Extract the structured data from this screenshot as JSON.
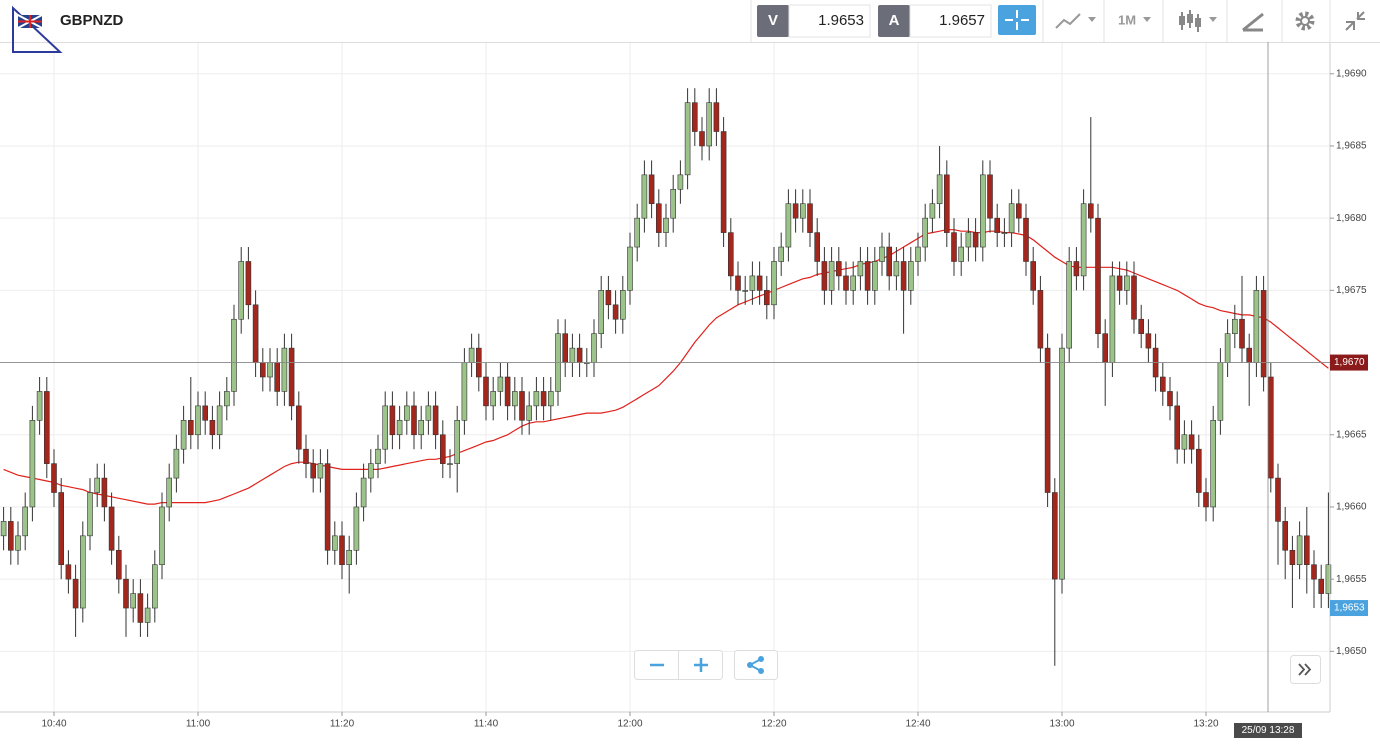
{
  "toolbar": {
    "symbol": "GBPNZD",
    "bid_label": "V",
    "bid": "1.9653",
    "ask_label": "A",
    "ask": "1.9657",
    "timeframe": "1M"
  },
  "chart_data": {
    "type": "candlestick",
    "categories": [
      null,
      null,
      null,
      null,
      null,
      null,
      null,
      "10:40",
      null,
      null,
      null,
      null,
      null,
      null,
      null,
      null,
      null,
      null,
      null,
      null,
      null,
      null,
      null,
      null,
      null,
      null,
      null,
      "11:00",
      null,
      null,
      null,
      null,
      null,
      null,
      null,
      null,
      null,
      null,
      null,
      null,
      null,
      null,
      null,
      null,
      null,
      null,
      null,
      "11:20",
      null,
      null,
      null,
      null,
      null,
      null,
      null,
      null,
      null,
      null,
      null,
      null,
      null,
      null,
      null,
      null,
      null,
      null,
      null,
      "11:40",
      null,
      null,
      null,
      null,
      null,
      null,
      null,
      null,
      null,
      null,
      null,
      null,
      null,
      null,
      null,
      null,
      null,
      null,
      null,
      "12:00",
      null,
      null,
      null,
      null,
      null,
      null,
      null,
      null,
      null,
      null,
      null,
      null,
      null,
      null,
      null,
      null,
      null,
      null,
      null,
      "12:20",
      null,
      null,
      null,
      null,
      null,
      null,
      null,
      null,
      null,
      null,
      null,
      null,
      null,
      null,
      null,
      null,
      null,
      null,
      null,
      "12:40",
      null,
      null,
      null,
      null,
      null,
      null,
      null,
      null,
      null,
      null,
      null,
      null,
      null,
      null,
      null,
      null,
      null,
      null,
      null,
      "13:00",
      null,
      null,
      null,
      null,
      null,
      null,
      null,
      null,
      null,
      null,
      null,
      null,
      null,
      null,
      null,
      null,
      null,
      null,
      null,
      "13:20",
      null,
      null,
      null,
      null,
      null,
      null,
      null,
      null,
      null,
      null,
      null,
      null,
      null,
      null,
      null,
      null,
      null
    ],
    "open": [
      1.9658,
      1.9659,
      1.9657,
      1.9658,
      1.966,
      1.9666,
      1.9668,
      1.9663,
      1.9661,
      1.9656,
      1.9655,
      1.9653,
      1.9658,
      1.9661,
      1.9662,
      1.966,
      1.9657,
      1.9655,
      1.9653,
      1.9654,
      1.9652,
      1.9653,
      1.9656,
      1.966,
      1.9662,
      1.9664,
      1.9666,
      1.9665,
      1.9667,
      1.9666,
      1.9665,
      1.9667,
      1.9668,
      1.9673,
      1.9677,
      1.9674,
      1.967,
      1.9669,
      1.967,
      1.9668,
      1.9671,
      1.9667,
      1.9664,
      1.9663,
      1.9662,
      1.9663,
      1.9657,
      1.9658,
      1.9656,
      1.9657,
      1.966,
      1.9662,
      1.9663,
      1.9664,
      1.9667,
      1.9665,
      1.9666,
      1.9667,
      1.9665,
      1.9666,
      1.9667,
      1.9665,
      1.9663,
      1.9663,
      1.9666,
      1.967,
      1.9671,
      1.9669,
      1.9667,
      1.9668,
      1.9669,
      1.9667,
      1.9668,
      1.9666,
      1.9667,
      1.9668,
      1.9667,
      1.9668,
      1.9672,
      1.967,
      1.9671,
      1.967,
      1.967,
      1.9672,
      1.9675,
      1.9674,
      1.9673,
      1.9675,
      1.9678,
      1.968,
      1.9683,
      1.9681,
      1.9679,
      1.968,
      1.9682,
      1.9683,
      1.9688,
      1.9686,
      1.9685,
      1.9688,
      1.9686,
      1.9679,
      1.9676,
      1.9675,
      1.9675,
      1.9676,
      1.9675,
      1.9674,
      1.9677,
      1.9678,
      1.9681,
      1.968,
      1.9681,
      1.9679,
      1.9677,
      1.9675,
      1.9677,
      1.9676,
      1.9675,
      1.9676,
      1.9677,
      1.9675,
      1.9677,
      1.9678,
      1.9676,
      1.9677,
      1.9675,
      1.9677,
      1.9678,
      1.968,
      1.9681,
      1.9683,
      1.9679,
      1.9677,
      1.9678,
      1.9679,
      1.9678,
      1.9683,
      1.968,
      1.9679,
      1.9679,
      1.9681,
      1.968,
      1.9677,
      1.9675,
      1.9671,
      1.9661,
      1.9655,
      1.9671,
      1.9677,
      1.9676,
      1.9681,
      1.968,
      1.9672,
      1.967,
      1.9676,
      1.9675,
      1.9676,
      1.9673,
      1.9672,
      1.9671,
      1.9669,
      1.9668,
      1.9667,
      1.9664,
      1.9665,
      1.9664,
      1.9661,
      1.966,
      1.9666,
      1.967,
      1.9672,
      1.9673,
      1.9671,
      1.967,
      1.9675,
      1.9669,
      1.9662,
      1.9659,
      1.9657,
      1.9656,
      1.9658,
      1.9656,
      1.9655,
      1.9654
    ],
    "high": [
      1.966,
      1.966,
      1.9659,
      1.9661,
      1.9667,
      1.9669,
      1.9669,
      1.9664,
      1.9662,
      1.9657,
      1.9656,
      1.9659,
      1.9662,
      1.9663,
      1.9663,
      1.9661,
      1.9658,
      1.9656,
      1.9655,
      1.9655,
      1.9654,
      1.9657,
      1.9661,
      1.9663,
      1.9665,
      1.9667,
      1.9669,
      1.9668,
      1.9668,
      1.9667,
      1.9668,
      1.9669,
      1.9674,
      1.9678,
      1.9678,
      1.9675,
      1.9671,
      1.9671,
      1.9671,
      1.9672,
      1.9672,
      1.9668,
      1.9665,
      1.9664,
      1.9664,
      1.9664,
      1.9659,
      1.9659,
      1.9658,
      1.9661,
      1.9663,
      1.9664,
      1.9665,
      1.9668,
      1.9668,
      1.9667,
      1.9668,
      1.9668,
      1.9667,
      1.9668,
      1.9668,
      1.9666,
      1.9664,
      1.9667,
      1.9671,
      1.9672,
      1.9672,
      1.967,
      1.9669,
      1.967,
      1.967,
      1.9669,
      1.9669,
      1.9668,
      1.9669,
      1.9669,
      1.9669,
      1.9673,
      1.9673,
      1.9672,
      1.9672,
      1.9671,
      1.9673,
      1.9676,
      1.9676,
      1.9675,
      1.9676,
      1.9679,
      1.9681,
      1.9684,
      1.9684,
      1.9682,
      1.9681,
      1.9683,
      1.9684,
      1.9689,
      1.9689,
      1.9687,
      1.9689,
      1.9689,
      1.9687,
      1.968,
      1.9677,
      1.9676,
      1.9677,
      1.9677,
      1.9676,
      1.9678,
      1.9679,
      1.9682,
      1.9682,
      1.9682,
      1.9682,
      1.968,
      1.9678,
      1.9678,
      1.9678,
      1.9677,
      1.9677,
      1.9678,
      1.9678,
      1.9678,
      1.9679,
      1.9679,
      1.9678,
      1.9678,
      1.9678,
      1.9679,
      1.9681,
      1.9682,
      1.9685,
      1.9684,
      1.968,
      1.9679,
      1.968,
      1.968,
      1.9684,
      1.9684,
      1.9681,
      1.968,
      1.9682,
      1.9682,
      1.9681,
      1.9678,
      1.9676,
      1.9672,
      1.9662,
      1.9672,
      1.9678,
      1.9678,
      1.9682,
      1.9687,
      1.9681,
      1.9673,
      1.9677,
      1.9677,
      1.9677,
      1.9677,
      1.9674,
      1.9673,
      1.9672,
      1.967,
      1.9669,
      1.9668,
      1.9666,
      1.9666,
      1.9665,
      1.9662,
      1.9667,
      1.9671,
      1.9673,
      1.9674,
      1.9676,
      1.9672,
      1.9676,
      1.9676,
      1.967,
      1.9663,
      1.966,
      1.9658,
      1.9659,
      1.966,
      1.9657,
      1.9656,
      1.9661
    ],
    "low": [
      1.9657,
      1.9656,
      1.9656,
      1.9657,
      1.9659,
      1.9665,
      1.9662,
      1.966,
      1.9655,
      1.9654,
      1.9651,
      1.9652,
      1.9657,
      1.966,
      1.9659,
      1.9656,
      1.9654,
      1.9651,
      1.9652,
      1.9651,
      1.9651,
      1.9652,
      1.9655,
      1.9659,
      1.9661,
      1.9663,
      1.9664,
      1.9664,
      1.9665,
      1.9664,
      1.9664,
      1.9666,
      1.9667,
      1.9672,
      1.9673,
      1.9669,
      1.9668,
      1.9668,
      1.9667,
      1.9667,
      1.9666,
      1.9663,
      1.9662,
      1.9661,
      1.9661,
      1.9656,
      1.9656,
      1.9655,
      1.9654,
      1.9656,
      1.9659,
      1.9661,
      1.9662,
      1.9663,
      1.9664,
      1.9664,
      1.9665,
      1.9664,
      1.9664,
      1.9665,
      1.9664,
      1.9662,
      1.9662,
      1.9661,
      1.9665,
      1.9669,
      1.9668,
      1.9666,
      1.9666,
      1.9667,
      1.9666,
      1.9666,
      1.9665,
      1.9665,
      1.9666,
      1.9666,
      1.9666,
      1.9667,
      1.9669,
      1.9669,
      1.9669,
      1.9669,
      1.9669,
      1.9671,
      1.9673,
      1.9672,
      1.9672,
      1.9674,
      1.9677,
      1.9679,
      1.968,
      1.9678,
      1.9678,
      1.9679,
      1.9681,
      1.9682,
      1.9685,
      1.9684,
      1.9684,
      1.9685,
      1.9678,
      1.9675,
      1.9674,
      1.9674,
      1.9674,
      1.9674,
      1.9673,
      1.9673,
      1.9676,
      1.9677,
      1.9679,
      1.9679,
      1.9678,
      1.9676,
      1.9674,
      1.9674,
      1.9675,
      1.9674,
      1.9674,
      1.9675,
      1.9674,
      1.9674,
      1.9676,
      1.9675,
      1.9675,
      1.9672,
      1.9674,
      1.9676,
      1.9677,
      1.9679,
      1.968,
      1.9678,
      1.9676,
      1.9676,
      1.9677,
      1.9677,
      1.9677,
      1.9679,
      1.9678,
      1.9678,
      1.9678,
      1.9679,
      1.9676,
      1.9674,
      1.967,
      1.966,
      1.9649,
      1.9654,
      1.967,
      1.9675,
      1.9675,
      1.9679,
      1.9671,
      1.9667,
      1.9669,
      1.9674,
      1.9674,
      1.9672,
      1.9671,
      1.967,
      1.9668,
      1.9667,
      1.9666,
      1.9663,
      1.9663,
      1.9663,
      1.966,
      1.9659,
      1.9659,
      1.9665,
      1.9669,
      1.9671,
      1.967,
      1.9667,
      1.9669,
      1.9668,
      1.9661,
      1.9656,
      1.9655,
      1.9653,
      1.9655,
      1.9654,
      1.9653,
      1.9653,
      1.9653
    ],
    "close": [
      1.9659,
      1.9657,
      1.9658,
      1.966,
      1.9666,
      1.9668,
      1.9663,
      1.9661,
      1.9656,
      1.9655,
      1.9653,
      1.9658,
      1.9661,
      1.9662,
      1.966,
      1.9657,
      1.9655,
      1.9653,
      1.9654,
      1.9652,
      1.9653,
      1.9656,
      1.966,
      1.9662,
      1.9664,
      1.9666,
      1.9665,
      1.9667,
      1.9666,
      1.9665,
      1.9667,
      1.9668,
      1.9673,
      1.9677,
      1.9674,
      1.967,
      1.9669,
      1.967,
      1.9668,
      1.9671,
      1.9667,
      1.9664,
      1.9663,
      1.9662,
      1.9663,
      1.9657,
      1.9658,
      1.9656,
      1.9657,
      1.966,
      1.9662,
      1.9663,
      1.9664,
      1.9667,
      1.9665,
      1.9666,
      1.9667,
      1.9665,
      1.9666,
      1.9667,
      1.9665,
      1.9663,
      1.9663,
      1.9666,
      1.967,
      1.9671,
      1.9669,
      1.9667,
      1.9668,
      1.9669,
      1.9667,
      1.9668,
      1.9666,
      1.9667,
      1.9668,
      1.9667,
      1.9668,
      1.9672,
      1.967,
      1.9671,
      1.967,
      1.967,
      1.9672,
      1.9675,
      1.9674,
      1.9673,
      1.9675,
      1.9678,
      1.968,
      1.9683,
      1.9681,
      1.9679,
      1.968,
      1.9682,
      1.9683,
      1.9688,
      1.9686,
      1.9685,
      1.9688,
      1.9686,
      1.9679,
      1.9676,
      1.9675,
      1.9675,
      1.9676,
      1.9675,
      1.9674,
      1.9677,
      1.9678,
      1.9681,
      1.968,
      1.9681,
      1.9679,
      1.9677,
      1.9675,
      1.9677,
      1.9676,
      1.9675,
      1.9676,
      1.9677,
      1.9675,
      1.9677,
      1.9678,
      1.9676,
      1.9677,
      1.9675,
      1.9677,
      1.9678,
      1.968,
      1.9681,
      1.9683,
      1.9679,
      1.9677,
      1.9678,
      1.9679,
      1.9678,
      1.9683,
      1.968,
      1.9679,
      1.9679,
      1.9681,
      1.968,
      1.9677,
      1.9675,
      1.9671,
      1.9661,
      1.9655,
      1.9671,
      1.9677,
      1.9676,
      1.9681,
      1.968,
      1.9672,
      1.967,
      1.9676,
      1.9675,
      1.9676,
      1.9673,
      1.9672,
      1.9671,
      1.9669,
      1.9668,
      1.9667,
      1.9664,
      1.9665,
      1.9664,
      1.9661,
      1.966,
      1.9666,
      1.967,
      1.9672,
      1.9673,
      1.9671,
      1.967,
      1.9675,
      1.9669,
      1.9662,
      1.9659,
      1.9657,
      1.9656,
      1.9658,
      1.9656,
      1.9655,
      1.9654,
      1.9656
    ],
    "up_color": "#9cc48a",
    "down_color": "#a3271c",
    "moving_average": {
      "color": "#e0221c",
      "values": [
        1.96626,
        1.96624,
        1.96622,
        1.96621,
        1.9662,
        1.96619,
        1.96618,
        1.96617,
        1.96615,
        1.96614,
        1.96613,
        1.96612,
        1.9661,
        1.96609,
        1.96608,
        1.96607,
        1.96606,
        1.96605,
        1.96604,
        1.96603,
        1.96602,
        1.96602,
        1.96603,
        1.96603,
        1.96603,
        1.96603,
        1.96603,
        1.96603,
        1.96603,
        1.96604,
        1.96605,
        1.96607,
        1.96609,
        1.96611,
        1.96613,
        1.96616,
        1.96619,
        1.96622,
        1.96625,
        1.96628,
        1.9663,
        1.96631,
        1.96631,
        1.9663,
        1.96629,
        1.96628,
        1.96627,
        1.96626,
        1.96626,
        1.96626,
        1.96626,
        1.96626,
        1.96626,
        1.96627,
        1.96628,
        1.96629,
        1.9663,
        1.96631,
        1.96632,
        1.96633,
        1.96633,
        1.96634,
        1.96635,
        1.96637,
        1.96639,
        1.96641,
        1.96643,
        1.96645,
        1.96646,
        1.96648,
        1.9665,
        1.96653,
        1.96656,
        1.96658,
        1.96659,
        1.96659,
        1.9666,
        1.96661,
        1.96662,
        1.96663,
        1.96664,
        1.96665,
        1.96665,
        1.96665,
        1.96666,
        1.96667,
        1.96669,
        1.96672,
        1.96675,
        1.96678,
        1.96681,
        1.96684,
        1.96689,
        1.96694,
        1.967,
        1.96707,
        1.96714,
        1.9672,
        1.96726,
        1.96731,
        1.96734,
        1.96737,
        1.9674,
        1.96742,
        1.96744,
        1.96746,
        1.96748,
        1.9675,
        1.96752,
        1.96754,
        1.96756,
        1.96758,
        1.96759,
        1.96761,
        1.96762,
        1.96763,
        1.96764,
        1.96765,
        1.96766,
        1.96768,
        1.96769,
        1.9677,
        1.96772,
        1.96774,
        1.96777,
        1.9678,
        1.96783,
        1.96786,
        1.96789,
        1.9679,
        1.96791,
        1.96792,
        1.96792,
        1.96791,
        1.96791,
        1.9679,
        1.9679,
        1.96791,
        1.96791,
        1.9679,
        1.9679,
        1.96789,
        1.96788,
        1.96785,
        1.96781,
        1.96777,
        1.96773,
        1.9677,
        1.96767,
        1.96766,
        1.96766,
        1.96766,
        1.96766,
        1.96766,
        1.96766,
        1.96765,
        1.96764,
        1.96762,
        1.9676,
        1.96758,
        1.96756,
        1.96754,
        1.96752,
        1.9675,
        1.96747,
        1.96744,
        1.96741,
        1.96739,
        1.96738,
        1.96736,
        1.96735,
        1.96734,
        1.96733,
        1.96733,
        1.96732,
        1.96731,
        1.96728,
        1.96724,
        1.9672,
        1.96716,
        1.96712,
        1.96708,
        1.96704,
        1.967,
        1.96696
      ]
    },
    "ylim": [
      1.96458,
      1.96922
    ],
    "yticks": [
      {
        "value": 1.965,
        "label": "1,9650"
      },
      {
        "value": 1.9655,
        "label": "1,9655"
      },
      {
        "value": 1.966,
        "label": "1,9660"
      },
      {
        "value": 1.9665,
        "label": "1,9665"
      },
      {
        "value": 1.967,
        "label": "1,9670"
      },
      {
        "value": 1.9675,
        "label": "1,9675"
      },
      {
        "value": 1.968,
        "label": "1,9680"
      },
      {
        "value": 1.9685,
        "label": "1,9685"
      },
      {
        "value": 1.969,
        "label": "1,9690"
      }
    ],
    "grid": true,
    "crosshair": {
      "x_label": "25/09 13:28",
      "y": {
        "value": 1.967,
        "label": "1,9670"
      }
    },
    "last_price": {
      "value": 1.9653,
      "label": "1,9653"
    }
  }
}
